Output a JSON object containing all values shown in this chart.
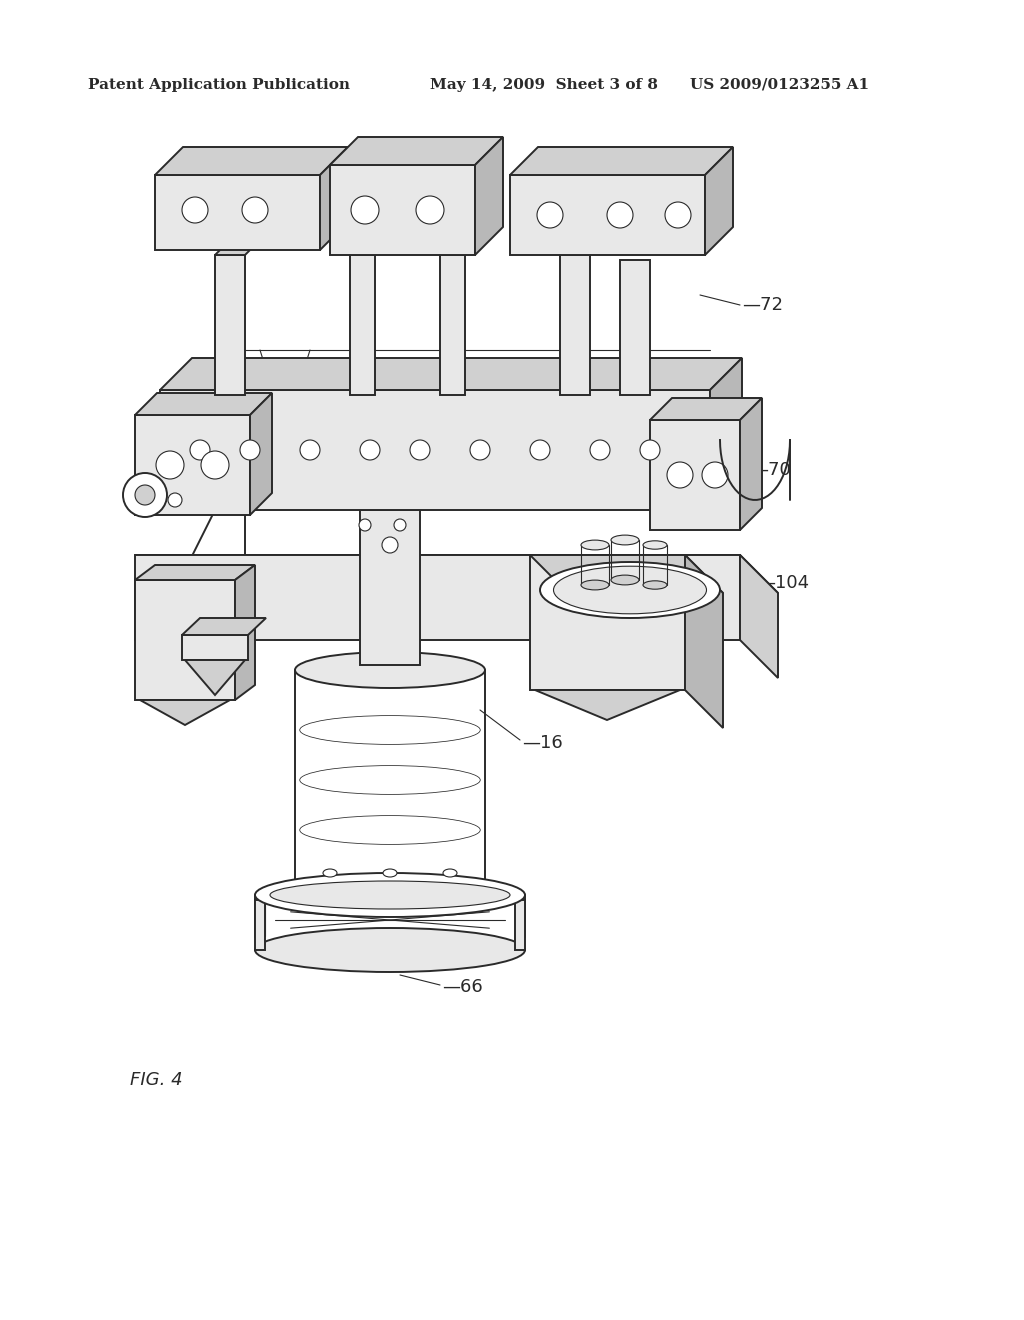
{
  "header_left": "Patent Application Publication",
  "header_center": "May 14, 2009  Sheet 3 of 8",
  "header_right": "US 2009/0123255 A1",
  "figure_label": "FIG. 4",
  "bg_color": "#ffffff",
  "line_color": "#2a2a2a",
  "fill_light": "#e8e8e8",
  "fill_mid": "#d0d0d0",
  "fill_dark": "#b8b8b8",
  "header_fontsize": 11,
  "label_fontsize": 13,
  "fig_label_fontsize": 13,
  "lw_main": 1.4,
  "lw_thin": 0.8,
  "lw_thick": 2.0
}
